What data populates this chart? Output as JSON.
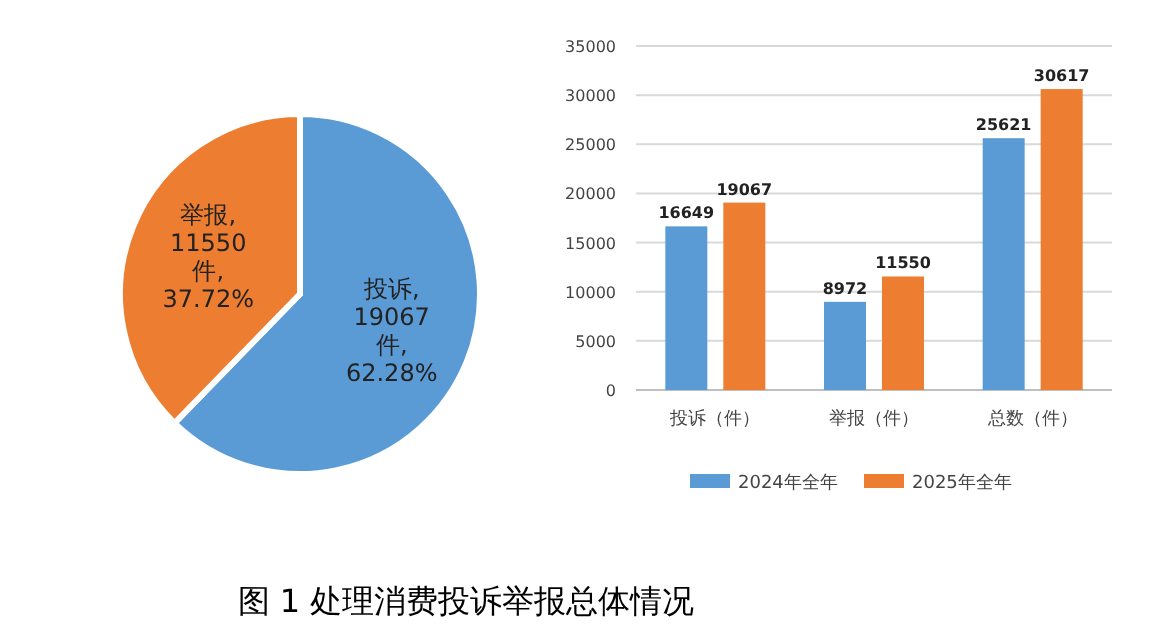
{
  "chart_data": [
    {
      "type": "pie",
      "categories": [
        "投诉",
        "举报"
      ],
      "values": [
        19067,
        11550
      ],
      "colors": [
        "#5b9bd5",
        "#ed7d31"
      ],
      "value_labels": [
        ", 19067 件, 62.28%",
        ", 11550 件, 37.72%"
      ],
      "legend": false,
      "annotations": [
        "图 1  处理消费投诉举报总体情况"
      ]
    },
    {
      "type": "bar",
      "categories": [
        "投诉（件）",
        "举报（件）",
        "总数（件）"
      ],
      "series": [
        {
          "name": "2024年全年",
          "color": "#5b9bd5",
          "values": [
            16649,
            8972,
            25621
          ]
        },
        {
          "name": "2025年全年",
          "color": "#ed7d31",
          "values": [
            19067,
            11550,
            30617
          ]
        }
      ],
      "ylim": [
        0,
        35000
      ],
      "yticks": [
        0,
        5000,
        10000,
        15000,
        20000,
        25000,
        30000,
        35000
      ],
      "grid": "y",
      "data_labels": true,
      "legend": "bottom"
    }
  ]
}
